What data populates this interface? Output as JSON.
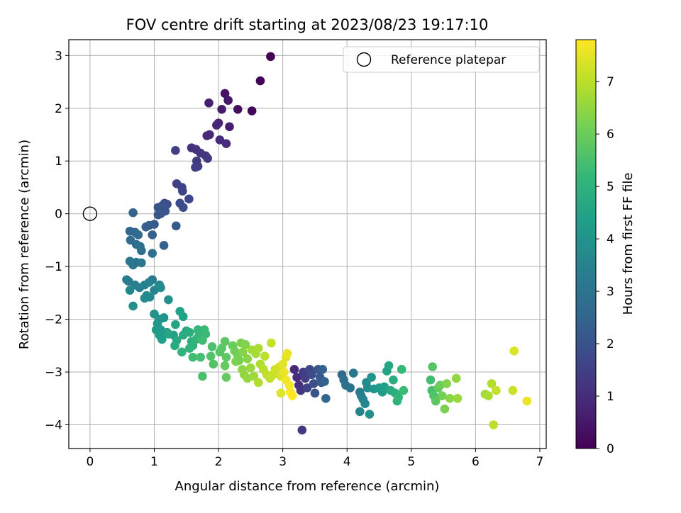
{
  "chart_data": {
    "type": "scatter",
    "title": "FOV centre drift starting at 2023/08/23 19:17:10",
    "xlabel": "Angular distance from reference (arcmin)",
    "ylabel": "Rotation from reference (arcmin)",
    "xlim": [
      -0.33,
      7.1
    ],
    "ylim": [
      -4.45,
      3.3
    ],
    "xticks": [
      0,
      1,
      2,
      3,
      4,
      5,
      6,
      7
    ],
    "yticks": [
      -4,
      -3,
      -2,
      -1,
      0,
      1,
      2,
      3
    ],
    "grid": true,
    "legend": {
      "placement": "top-right",
      "entries": [
        "Reference platepar"
      ]
    },
    "reference_point": {
      "x": 0,
      "y": 0
    },
    "colorbar": {
      "label": "Hours from first FF file",
      "range": [
        0,
        7.8
      ],
      "ticks": [
        0,
        1,
        2,
        3,
        4,
        5,
        6,
        7
      ],
      "colormap": "viridis"
    },
    "colormap_stops": [
      "#440154",
      "#482878",
      "#3e4989",
      "#31688e",
      "#26828e",
      "#1f9e89",
      "#35b779",
      "#6ece58",
      "#b5de2b",
      "#fde725"
    ],
    "series": [
      {
        "points": [
          [
            2.81,
            2.98,
            0.0
          ],
          [
            2.65,
            2.52,
            0.05
          ],
          [
            2.52,
            1.95,
            0.1
          ],
          [
            2.3,
            1.98,
            0.3
          ],
          [
            2.1,
            2.28,
            0.4
          ],
          [
            2.15,
            2.15,
            0.5
          ],
          [
            2.05,
            1.98,
            0.6
          ],
          [
            2.17,
            1.65,
            0.65
          ],
          [
            1.85,
            2.1,
            0.7
          ],
          [
            2.0,
            1.72,
            0.8
          ],
          [
            1.97,
            1.68,
            0.85
          ],
          [
            1.86,
            1.5,
            0.9
          ],
          [
            1.82,
            1.48,
            0.95
          ],
          [
            2.02,
            1.4,
            1.0
          ],
          [
            2.12,
            1.33,
            1.05
          ],
          [
            1.58,
            1.25,
            1.1
          ],
          [
            1.65,
            1.22,
            1.15
          ],
          [
            1.72,
            1.15,
            1.2
          ],
          [
            1.8,
            1.1,
            1.25
          ],
          [
            1.83,
            1.05,
            1.3
          ],
          [
            1.66,
            1.0,
            1.35
          ],
          [
            1.68,
            0.9,
            1.4
          ],
          [
            1.64,
            0.88,
            1.45
          ],
          [
            1.33,
            1.2,
            1.5
          ],
          [
            1.35,
            0.57,
            1.55
          ],
          [
            1.43,
            0.5,
            1.6
          ],
          [
            1.44,
            0.43,
            1.65
          ],
          [
            1.54,
            0.28,
            1.7
          ],
          [
            1.4,
            0.2,
            1.75
          ],
          [
            1.45,
            0.12,
            1.8
          ],
          [
            1.16,
            0.2,
            1.85
          ],
          [
            1.2,
            0.18,
            1.9
          ],
          [
            1.12,
            0.15,
            1.95
          ],
          [
            1.06,
            0.12,
            2.0
          ],
          [
            1.17,
            0.05,
            2.05
          ],
          [
            1.1,
            0.0,
            2.1
          ],
          [
            1.06,
            -0.02,
            2.15
          ],
          [
            1.34,
            -0.23,
            2.2
          ],
          [
            1.0,
            -0.2,
            2.25
          ],
          [
            0.92,
            -0.22,
            2.3
          ],
          [
            0.87,
            -0.25,
            2.35
          ],
          [
            0.97,
            -0.4,
            2.4
          ],
          [
            1.15,
            -0.6,
            2.45
          ],
          [
            0.67,
            0.02,
            2.5
          ],
          [
            0.62,
            -0.33,
            2.55
          ],
          [
            0.7,
            -0.35,
            2.6
          ],
          [
            0.75,
            -0.4,
            2.65
          ],
          [
            0.63,
            -0.5,
            2.7
          ],
          [
            0.72,
            -0.58,
            2.75
          ],
          [
            0.8,
            -0.7,
            2.8
          ],
          [
            0.78,
            -0.62,
            2.85
          ],
          [
            0.97,
            -0.75,
            2.9
          ],
          [
            0.72,
            -0.92,
            2.95
          ],
          [
            0.67,
            -0.97,
            3.0
          ],
          [
            0.62,
            -0.9,
            3.05
          ],
          [
            0.8,
            -0.93,
            3.1
          ],
          [
            0.97,
            -1.25,
            3.15
          ],
          [
            0.57,
            -1.25,
            3.2
          ],
          [
            0.6,
            -1.28,
            3.25
          ],
          [
            0.7,
            -1.35,
            3.3
          ],
          [
            0.77,
            -1.4,
            3.35
          ],
          [
            0.85,
            -1.35,
            3.4
          ],
          [
            0.92,
            -1.3,
            3.45
          ],
          [
            1.08,
            -1.35,
            3.5
          ],
          [
            1.0,
            -1.45,
            3.55
          ],
          [
            0.62,
            -1.45,
            3.6
          ],
          [
            0.88,
            -1.55,
            3.65
          ],
          [
            0.85,
            -1.6,
            3.7
          ],
          [
            0.93,
            -1.58,
            3.75
          ],
          [
            1.1,
            -1.4,
            3.8
          ],
          [
            0.67,
            -1.75,
            3.85
          ],
          [
            1.22,
            -1.63,
            3.9
          ],
          [
            1.0,
            -1.9,
            3.95
          ],
          [
            1.08,
            -2.0,
            4.0
          ],
          [
            1.15,
            -1.97,
            4.05
          ],
          [
            1.05,
            -2.08,
            4.1
          ],
          [
            1.03,
            -2.2,
            4.15
          ],
          [
            1.1,
            -2.2,
            4.2
          ],
          [
            1.2,
            -2.25,
            4.25
          ],
          [
            1.08,
            -2.3,
            4.3
          ],
          [
            1.12,
            -2.38,
            4.35
          ],
          [
            1.3,
            -2.3,
            4.4
          ],
          [
            1.4,
            -1.85,
            4.45
          ],
          [
            1.45,
            -1.95,
            4.5
          ],
          [
            1.33,
            -2.1,
            4.55
          ],
          [
            1.22,
            -2.28,
            4.6
          ],
          [
            1.5,
            -2.22,
            4.65
          ],
          [
            1.35,
            -2.4,
            4.7
          ],
          [
            1.32,
            -2.5,
            4.75
          ],
          [
            1.45,
            -2.3,
            4.8
          ],
          [
            1.55,
            -2.25,
            4.85
          ],
          [
            1.58,
            -2.42,
            4.9
          ],
          [
            1.6,
            -2.5,
            4.95
          ],
          [
            1.43,
            -2.62,
            5.0
          ],
          [
            1.55,
            -2.55,
            5.05
          ],
          [
            1.65,
            -2.38,
            5.1
          ],
          [
            1.7,
            -2.3,
            5.15
          ],
          [
            1.68,
            -2.2,
            5.2
          ],
          [
            1.78,
            -2.2,
            5.25
          ],
          [
            1.8,
            -2.28,
            5.3
          ],
          [
            1.75,
            -2.4,
            5.35
          ],
          [
            1.6,
            -2.72,
            5.4
          ],
          [
            1.72,
            -2.72,
            5.45
          ],
          [
            1.75,
            -3.08,
            5.5
          ],
          [
            1.9,
            -2.52,
            5.55
          ],
          [
            1.88,
            -2.7,
            5.6
          ],
          [
            1.92,
            -2.85,
            5.65
          ],
          [
            2.02,
            -2.62,
            5.7
          ],
          [
            2.05,
            -2.55,
            5.75
          ],
          [
            2.1,
            -2.42,
            5.8
          ],
          [
            2.12,
            -2.72,
            5.85
          ],
          [
            2.1,
            -2.88,
            5.9
          ],
          [
            2.12,
            -3.1,
            5.95
          ],
          [
            2.22,
            -2.5,
            6.0
          ],
          [
            2.25,
            -2.6,
            6.05
          ],
          [
            2.3,
            -2.68,
            6.1
          ],
          [
            2.32,
            -2.78,
            6.15
          ],
          [
            2.27,
            -2.8,
            6.2
          ],
          [
            2.35,
            -2.45,
            6.25
          ],
          [
            2.42,
            -2.48,
            6.3
          ],
          [
            2.38,
            -2.62,
            6.35
          ],
          [
            2.45,
            -2.75,
            6.4
          ],
          [
            2.37,
            -2.95,
            6.45
          ],
          [
            2.4,
            -3.05,
            6.5
          ],
          [
            2.45,
            -3.12,
            6.55
          ],
          [
            2.5,
            -2.92,
            6.6
          ],
          [
            2.55,
            -3.08,
            6.65
          ],
          [
            2.52,
            -2.58,
            6.7
          ],
          [
            2.58,
            -2.65,
            6.75
          ],
          [
            2.62,
            -2.55,
            6.8
          ],
          [
            2.65,
            -2.85,
            6.85
          ],
          [
            2.62,
            -3.2,
            6.9
          ],
          [
            2.7,
            -2.95,
            6.95
          ],
          [
            2.72,
            -2.7,
            7.0
          ],
          [
            2.75,
            -3.05,
            7.05
          ],
          [
            2.8,
            -3.12,
            7.1
          ],
          [
            2.82,
            -2.45,
            7.15
          ],
          [
            2.85,
            -3.05,
            7.2
          ],
          [
            2.88,
            -2.95,
            7.25
          ],
          [
            2.95,
            -2.9,
            7.3
          ],
          [
            2.97,
            -3.08,
            7.35
          ],
          [
            2.97,
            -3.4,
            7.4
          ],
          [
            3.0,
            -2.85,
            7.45
          ],
          [
            3.05,
            -2.72,
            7.5
          ],
          [
            3.07,
            -2.65,
            7.55
          ],
          [
            3.02,
            -3.0,
            7.6
          ],
          [
            3.05,
            -3.15,
            7.65
          ],
          [
            3.1,
            -3.25,
            7.7
          ],
          [
            3.12,
            -3.38,
            7.75
          ],
          [
            3.15,
            -3.45,
            7.8
          ],
          [
            3.18,
            -2.95,
            0.9
          ],
          [
            3.22,
            -3.1,
            1.0
          ],
          [
            3.25,
            -3.25,
            1.1
          ],
          [
            3.28,
            -3.35,
            1.2
          ],
          [
            3.3,
            -4.1,
            1.3
          ],
          [
            3.32,
            -3.0,
            1.4
          ],
          [
            3.35,
            -3.12,
            1.5
          ],
          [
            3.38,
            -3.3,
            1.6
          ],
          [
            3.42,
            -2.95,
            1.7
          ],
          [
            3.45,
            -3.05,
            1.8
          ],
          [
            3.48,
            -3.22,
            1.9
          ],
          [
            3.5,
            -3.4,
            2.0
          ],
          [
            3.55,
            -2.95,
            2.1
          ],
          [
            3.58,
            -3.1,
            2.2
          ],
          [
            3.6,
            -3.2,
            2.3
          ],
          [
            3.62,
            -2.95,
            2.4
          ],
          [
            3.65,
            -3.18,
            2.5
          ],
          [
            3.67,
            -3.5,
            2.6
          ],
          [
            3.92,
            -3.05,
            2.7
          ],
          [
            3.95,
            -3.15,
            2.8
          ],
          [
            3.98,
            -3.25,
            2.9
          ],
          [
            4.05,
            -3.3,
            3.0
          ],
          [
            4.1,
            -3.02,
            3.1
          ],
          [
            4.2,
            -3.38,
            3.2
          ],
          [
            4.22,
            -3.45,
            3.3
          ],
          [
            4.25,
            -3.52,
            3.4
          ],
          [
            4.2,
            -3.75,
            3.5
          ],
          [
            4.28,
            -3.6,
            3.6
          ],
          [
            4.3,
            -3.2,
            3.7
          ],
          [
            4.32,
            -3.3,
            3.8
          ],
          [
            4.35,
            -3.8,
            3.9
          ],
          [
            4.38,
            -3.1,
            4.0
          ],
          [
            4.42,
            -3.32,
            4.1
          ],
          [
            4.5,
            -3.3,
            4.2
          ],
          [
            4.55,
            -3.38,
            4.3
          ],
          [
            4.58,
            -3.28,
            4.4
          ],
          [
            4.62,
            -2.98,
            4.5
          ],
          [
            4.65,
            -2.88,
            4.6
          ],
          [
            4.68,
            -3.35,
            4.7
          ],
          [
            4.72,
            -3.15,
            4.8
          ],
          [
            4.75,
            -3.4,
            4.9
          ],
          [
            4.78,
            -3.55,
            5.0
          ],
          [
            4.8,
            -3.48,
            5.1
          ],
          [
            4.85,
            -2.95,
            5.2
          ],
          [
            4.88,
            -3.35,
            5.3
          ],
          [
            5.3,
            -3.15,
            5.4
          ],
          [
            5.32,
            -3.35,
            5.5
          ],
          [
            5.35,
            -3.45,
            5.6
          ],
          [
            5.33,
            -2.9,
            5.7
          ],
          [
            5.38,
            -3.55,
            5.8
          ],
          [
            5.42,
            -3.3,
            5.9
          ],
          [
            5.45,
            -3.25,
            6.0
          ],
          [
            5.48,
            -3.45,
            6.1
          ],
          [
            5.52,
            -3.7,
            6.2
          ],
          [
            5.55,
            -3.22,
            6.3
          ],
          [
            5.6,
            -3.5,
            6.4
          ],
          [
            5.7,
            -3.12,
            6.5
          ],
          [
            5.72,
            -3.5,
            6.6
          ],
          [
            6.15,
            -3.42,
            6.7
          ],
          [
            6.2,
            -3.45,
            6.8
          ],
          [
            6.25,
            -3.22,
            6.9
          ],
          [
            6.28,
            -4.0,
            7.0
          ],
          [
            6.32,
            -3.35,
            7.1
          ],
          [
            6.58,
            -3.35,
            7.2
          ],
          [
            6.6,
            -2.6,
            7.4
          ],
          [
            6.8,
            -3.55,
            7.6
          ]
        ]
      }
    ]
  }
}
